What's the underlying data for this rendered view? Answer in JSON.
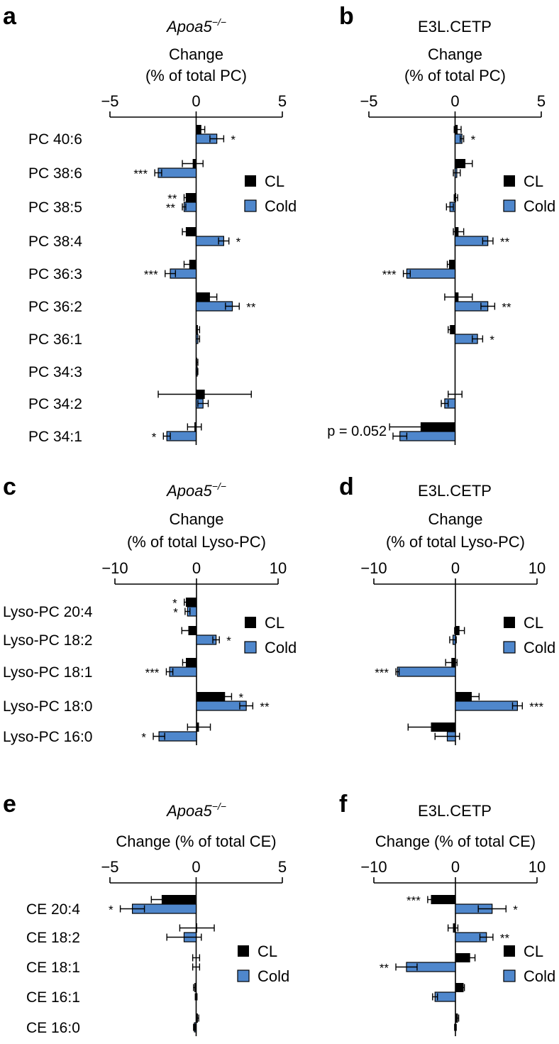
{
  "colors": {
    "cl": "#000000",
    "cold": "#4f87cc",
    "axis": "#000000"
  },
  "chart_data": [
    {
      "id": "a",
      "letter": "a",
      "type": "bar",
      "orientation": "horizontal",
      "title": "Apoa5",
      "title_sup": "−/−",
      "title_italic": true,
      "axis_title": [
        "Change",
        "(% of total PC)"
      ],
      "xlim": [
        -5,
        5
      ],
      "ticks": [
        -5,
        0,
        5
      ],
      "tick_labels": [
        "−5",
        "0",
        "5"
      ],
      "legend": [
        "CL",
        "Cold"
      ],
      "categories": [
        "PC 40:6",
        "PC 38:6",
        "PC 38:5",
        "PC 38:4",
        "PC 36:3",
        "PC 36:2",
        "PC 36:1",
        "PC 34:3",
        "PC 34:2",
        "PC 34:1"
      ],
      "series": [
        {
          "name": "CL",
          "values": [
            0.3,
            -0.2,
            -0.6,
            -0.6,
            -0.4,
            0.8,
            0.1,
            0.05,
            0.5,
            -0.1
          ],
          "errors": [
            0.2,
            0.6,
            0.1,
            0.2,
            0.3,
            0.4,
            0.1,
            0.05,
            2.7,
            0.4
          ],
          "sig": [
            "",
            "",
            "**",
            "",
            "",
            "",
            "",
            "",
            "",
            ""
          ]
        },
        {
          "name": "Cold",
          "values": [
            1.2,
            -2.2,
            -0.7,
            1.6,
            -1.5,
            2.1,
            0.1,
            0.05,
            0.4,
            -1.7
          ],
          "errors": [
            0.4,
            0.2,
            0.1,
            0.3,
            0.3,
            0.4,
            0.1,
            0.05,
            0.3,
            0.2
          ],
          "sig": [
            "*",
            "***",
            "**",
            "*",
            "***",
            "**",
            "",
            "",
            "",
            "*"
          ]
        }
      ],
      "annotations": []
    },
    {
      "id": "b",
      "letter": "b",
      "type": "bar",
      "orientation": "horizontal",
      "title": "E3L.CETP",
      "title_sup": "",
      "title_italic": false,
      "axis_title": [
        "Change",
        "(% of total PC)"
      ],
      "xlim": [
        -5,
        5
      ],
      "ticks": [
        -5,
        0,
        5
      ],
      "tick_labels": [
        "−5",
        "0",
        "5"
      ],
      "legend": [
        "CL",
        "Cold"
      ],
      "categories": [
        "PC 40:6",
        "PC 38:6",
        "PC 38:5",
        "PC 38:4",
        "PC 36:3",
        "PC 36:2",
        "PC 36:1",
        "PC 34:3",
        "PC 34:2",
        "PC 34:1"
      ],
      "series": [
        {
          "name": "CL",
          "values": [
            0.15,
            0.6,
            0.05,
            0.2,
            -0.35,
            0.2,
            -0.3,
            0.0,
            0.0,
            -2.0
          ],
          "errors": [
            0.2,
            0.4,
            0.1,
            0.3,
            0.1,
            0.8,
            0.1,
            0.0,
            0.4,
            1.8
          ],
          "sig": [
            "",
            "",
            "",
            "",
            "",
            "",
            "",
            "",
            "",
            ""
          ]
        },
        {
          "name": "Cold",
          "values": [
            0.4,
            0.1,
            -0.3,
            1.9,
            -2.8,
            1.9,
            1.3,
            0.0,
            -0.6,
            -3.2
          ],
          "errors": [
            0.1,
            0.2,
            0.2,
            0.3,
            0.2,
            0.4,
            0.3,
            0.0,
            0.2,
            0.4
          ],
          "sig": [
            "*",
            "",
            "",
            "**",
            "***",
            "**",
            "*",
            "",
            "",
            ""
          ]
        }
      ],
      "annotations": [
        {
          "text": "p = 0.052",
          "category_index": 9
        }
      ]
    },
    {
      "id": "c",
      "letter": "c",
      "type": "bar",
      "orientation": "horizontal",
      "title": "Apoa5",
      "title_sup": "−/−",
      "title_italic": true,
      "axis_title": [
        "Change",
        "(% of total Lyso-PC)"
      ],
      "xlim": [
        -10,
        10
      ],
      "ticks": [
        -10,
        0,
        10
      ],
      "tick_labels": [
        "−10",
        "0",
        "10"
      ],
      "legend": [
        "CL",
        "Cold"
      ],
      "categories": [
        "Lyso-PC 20:4",
        "Lyso-PC 18:2",
        "Lyso-PC 18:1",
        "Lyso-PC 18:0",
        "Lyso-PC 16:0"
      ],
      "series": [
        {
          "name": "CL",
          "values": [
            -1.3,
            -1.0,
            -1.3,
            3.5,
            0.3
          ],
          "errors": [
            0.2,
            0.8,
            0.4,
            0.8,
            1.4
          ],
          "sig": [
            "*",
            "",
            "",
            "*",
            ""
          ]
        },
        {
          "name": "Cold",
          "values": [
            -1.1,
            2.4,
            -3.3,
            6.1,
            -4.6
          ],
          "errors": [
            0.3,
            0.4,
            0.4,
            0.8,
            0.7
          ],
          "sig": [
            "*",
            "*",
            "***",
            "**",
            "*"
          ]
        }
      ],
      "annotations": []
    },
    {
      "id": "d",
      "letter": "d",
      "type": "bar",
      "orientation": "horizontal",
      "title": "E3L.CETP",
      "title_sup": "",
      "title_italic": false,
      "axis_title": [
        "Change",
        "(% of total Lyso-PC)"
      ],
      "xlim": [
        -10,
        10
      ],
      "ticks": [
        -10,
        0,
        10
      ],
      "tick_labels": [
        "−10",
        "0",
        "10"
      ],
      "legend": [
        "CL",
        "Cold"
      ],
      "categories": [
        "Lyso-PC 20:4",
        "Lyso-PC 18:2",
        "Lyso-PC 18:1",
        "Lyso-PC 18:0",
        "Lyso-PC 16:0"
      ],
      "series": [
        {
          "name": "CL",
          "values": [
            0.0,
            0.5,
            -0.5,
            2.0,
            -3.0
          ],
          "errors": [
            0.0,
            0.6,
            0.7,
            0.9,
            2.8
          ],
          "sig": [
            "",
            "",
            "",
            "",
            ""
          ]
        },
        {
          "name": "Cold",
          "values": [
            0.0,
            -0.3,
            -7.1,
            7.6,
            -1.0
          ],
          "errors": [
            0.0,
            0.4,
            0.2,
            0.6,
            1.5
          ],
          "sig": [
            "",
            "",
            "***",
            "***",
            ""
          ]
        }
      ],
      "annotations": []
    },
    {
      "id": "e",
      "letter": "e",
      "type": "bar",
      "orientation": "horizontal",
      "title": "Apoa5",
      "title_sup": "−/−",
      "title_italic": true,
      "axis_title": [
        "Change (% of total CE)"
      ],
      "xlim": [
        -5,
        5
      ],
      "ticks": [
        -5,
        0,
        5
      ],
      "tick_labels": [
        "−5",
        "0",
        "5"
      ],
      "legend": [
        "CL",
        "Cold"
      ],
      "categories": [
        "CE 20:4",
        "CE 18:2",
        "CE 18:1",
        "CE 16:1",
        "CE 16:0"
      ],
      "series": [
        {
          "name": "CL",
          "values": [
            -2.0,
            0.05,
            0.0,
            -0.1,
            0.1
          ],
          "errors": [
            0.6,
            1.0,
            0.2,
            0.05,
            0.05
          ],
          "sig": [
            "",
            "",
            "",
            "",
            ""
          ]
        },
        {
          "name": "Cold",
          "values": [
            -3.7,
            -0.7,
            0.0,
            0.0,
            -0.1
          ],
          "errors": [
            0.7,
            1.0,
            0.2,
            0.05,
            0.05
          ],
          "sig": [
            "*",
            "",
            "",
            "",
            ""
          ]
        }
      ],
      "annotations": []
    },
    {
      "id": "f",
      "letter": "f",
      "type": "bar",
      "orientation": "horizontal",
      "title": "E3L.CETP",
      "title_sup": "",
      "title_italic": false,
      "axis_title": [
        "Change (% of total CE)"
      ],
      "xlim": [
        -10,
        10
      ],
      "ticks": [
        -10,
        0,
        10
      ],
      "tick_labels": [
        "−10",
        "0",
        "10"
      ],
      "legend": [
        "CL",
        "Cold"
      ],
      "categories": [
        "CE 20:4",
        "CE 18:2",
        "CE 18:1",
        "CE 16:1",
        "CE 16:0"
      ],
      "series": [
        {
          "name": "CL",
          "values": [
            -3.0,
            -0.3,
            1.8,
            1.0,
            0.3
          ],
          "errors": [
            0.4,
            0.6,
            0.6,
            0.1,
            0.1
          ],
          "sig": [
            "***",
            "",
            "",
            "",
            ""
          ]
        },
        {
          "name": "Cold",
          "values": [
            4.5,
            3.8,
            -6.0,
            -2.5,
            0.0
          ],
          "errors": [
            1.7,
            0.8,
            1.3,
            0.3,
            0.1
          ],
          "sig": [
            "*",
            "**",
            "**",
            "",
            ""
          ]
        }
      ],
      "annotations": []
    }
  ]
}
